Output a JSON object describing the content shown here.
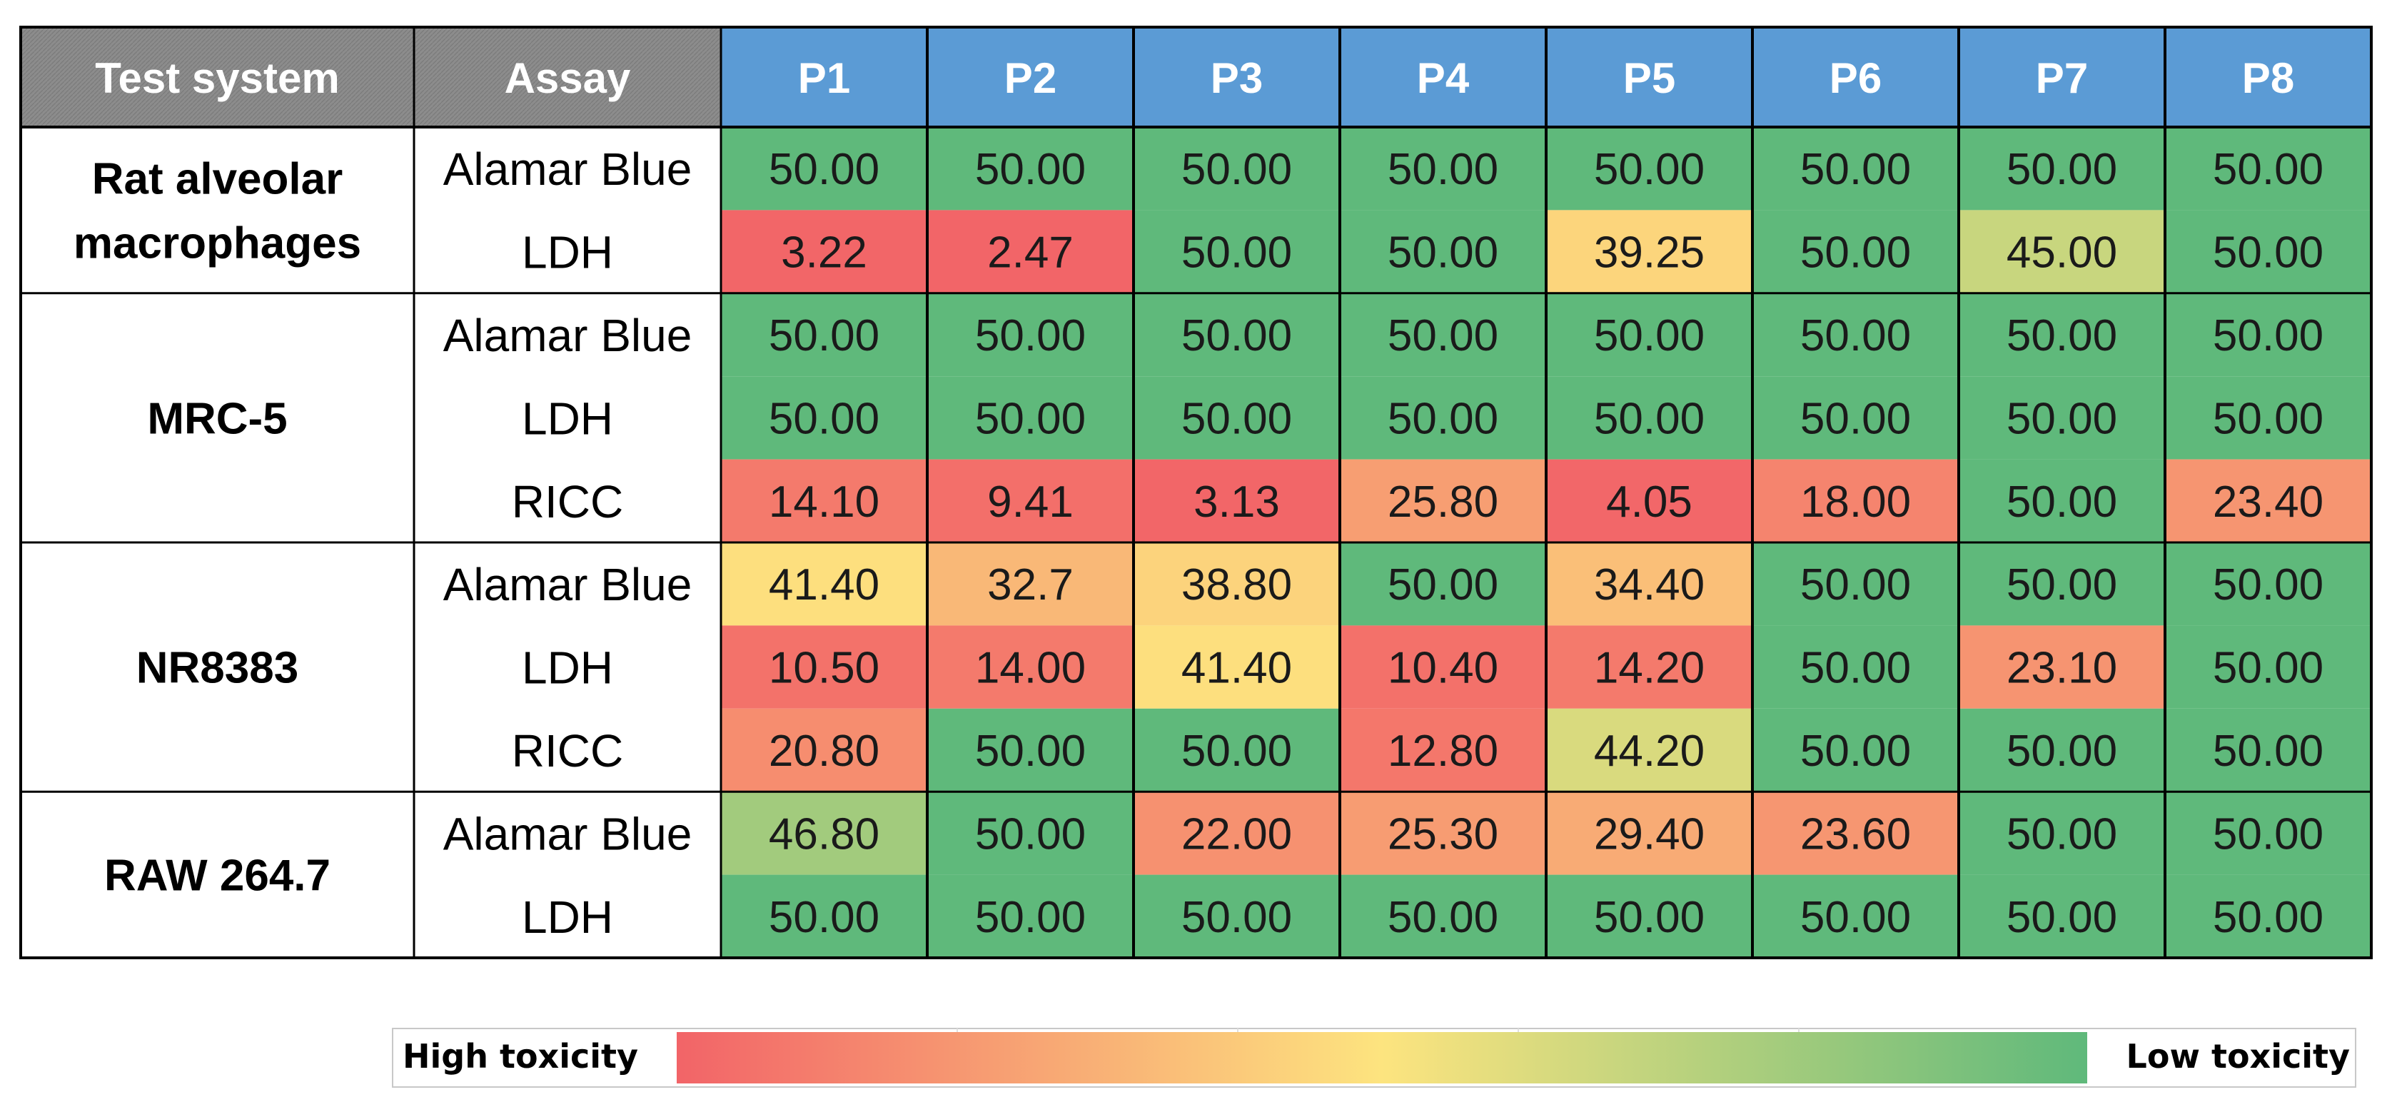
{
  "chart_data": {
    "type": "heatmap",
    "corner_headers": {
      "test_system": "Test system",
      "assay": "Assay"
    },
    "columns": [
      "P1",
      "P2",
      "P3",
      "P4",
      "P5",
      "P6",
      "P7",
      "P8"
    ],
    "groups": [
      {
        "system": [
          "Rat alveolar",
          "macrophages"
        ],
        "rows": [
          {
            "assay": "Alamar Blue",
            "values": [
              "50.00",
              "50.00",
              "50.00",
              "50.00",
              "50.00",
              "50.00",
              "50.00",
              "50.00"
            ]
          },
          {
            "assay": "LDH",
            "values": [
              "3.22",
              "2.47",
              "50.00",
              "50.00",
              "39.25",
              "50.00",
              "45.00",
              "50.00"
            ]
          }
        ]
      },
      {
        "system": [
          "MRC-5"
        ],
        "rows": [
          {
            "assay": "Alamar Blue",
            "values": [
              "50.00",
              "50.00",
              "50.00",
              "50.00",
              "50.00",
              "50.00",
              "50.00",
              "50.00"
            ]
          },
          {
            "assay": "LDH",
            "values": [
              "50.00",
              "50.00",
              "50.00",
              "50.00",
              "50.00",
              "50.00",
              "50.00",
              "50.00"
            ]
          },
          {
            "assay": "RICC",
            "values": [
              "14.10",
              "9.41",
              "3.13",
              "25.80",
              "4.05",
              "18.00",
              "50.00",
              "23.40"
            ]
          }
        ]
      },
      {
        "system": [
          "NR8383"
        ],
        "rows": [
          {
            "assay": "Alamar Blue",
            "values": [
              "41.40",
              "32.7",
              "38.80",
              "50.00",
              "34.40",
              "50.00",
              "50.00",
              "50.00"
            ]
          },
          {
            "assay": "LDH",
            "values": [
              "10.50",
              "14.00",
              "41.40",
              "10.40",
              "14.20",
              "50.00",
              "23.10",
              "50.00"
            ]
          },
          {
            "assay": "RICC",
            "values": [
              "20.80",
              "50.00",
              "50.00",
              "12.80",
              "44.20",
              "50.00",
              "50.00",
              "50.00"
            ]
          }
        ]
      },
      {
        "system": [
          "RAW 264.7"
        ],
        "rows": [
          {
            "assay": "Alamar Blue",
            "values": [
              "46.80",
              "50.00",
              "22.00",
              "25.30",
              "29.40",
              "23.60",
              "50.00",
              "50.00"
            ]
          },
          {
            "assay": "LDH",
            "values": [
              "50.00",
              "50.00",
              "50.00",
              "50.00",
              "50.00",
              "50.00",
              "50.00",
              "50.00"
            ]
          }
        ]
      }
    ],
    "legend": {
      "low_label": "High toxicity",
      "high_label": "Low toxicity",
      "color_low": "#f26468",
      "color_mid": "#fde47f",
      "color_high": "#5fb97b"
    },
    "colors": {
      "corner_header": "#8c8c8c",
      "column_header": "#5b9bd5",
      "header_text": "#ffffff",
      "value_text": "#1a1a1a",
      "grid": "#000000"
    }
  }
}
